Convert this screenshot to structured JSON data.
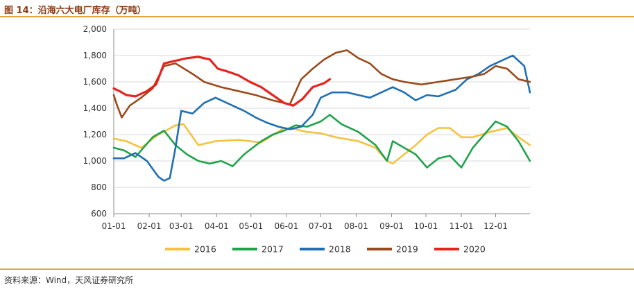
{
  "header": {
    "title": "图 14：沿海六大电厂库存（万吨）"
  },
  "footer": {
    "source": "资料来源：Wind，天风证券研究所"
  },
  "chart_data": {
    "type": "line",
    "title": "图 14：沿海六大电厂库存（万吨）",
    "xlabel": "",
    "ylabel": "",
    "ylim": [
      600,
      2000
    ],
    "yticks": [
      600,
      800,
      1000,
      1200,
      1400,
      1600,
      1800,
      2000
    ],
    "yticklabels": [
      "600",
      "800",
      "1,000",
      "1,200",
      "1,400",
      "1,600",
      "1,800",
      "2,000"
    ],
    "x_unit": "day_of_year",
    "xlim": [
      1,
      365
    ],
    "xticks": [
      1,
      32,
      60,
      91,
      121,
      152,
      182,
      213,
      244,
      274,
      305,
      335
    ],
    "xticklabels": [
      "01-01",
      "02-01",
      "03-01",
      "04-01",
      "05-01",
      "06-01",
      "07-01",
      "08-01",
      "09-01",
      "10-01",
      "11-01",
      "12-01"
    ],
    "grid": "horizontal",
    "legend_position": "bottom",
    "series": [
      {
        "name": "2016",
        "color": "#f5c242",
        "x": [
          1,
          12,
          25,
          40,
          55,
          62,
          75,
          90,
          110,
          130,
          150,
          160,
          170,
          182,
          195,
          215,
          230,
          240,
          245,
          255,
          265,
          275,
          285,
          295,
          305,
          315,
          330,
          345,
          355,
          365
        ],
        "y": [
          1170,
          1150,
          1100,
          1200,
          1270,
          1280,
          1120,
          1150,
          1160,
          1140,
          1250,
          1240,
          1220,
          1210,
          1180,
          1150,
          1100,
          1000,
          980,
          1050,
          1120,
          1200,
          1250,
          1250,
          1180,
          1180,
          1220,
          1250,
          1180,
          1120
        ]
      },
      {
        "name": "2017",
        "color": "#1fa34a",
        "x": [
          1,
          10,
          20,
          35,
          45,
          55,
          65,
          75,
          85,
          95,
          105,
          115,
          130,
          140,
          150,
          160,
          170,
          182,
          190,
          200,
          215,
          230,
          240,
          245,
          255,
          265,
          275,
          285,
          295,
          305,
          315,
          325,
          335,
          345,
          355,
          365
        ],
        "y": [
          1100,
          1080,
          1030,
          1180,
          1230,
          1120,
          1050,
          1000,
          980,
          1000,
          960,
          1050,
          1150,
          1200,
          1230,
          1270,
          1260,
          1300,
          1350,
          1280,
          1220,
          1120,
          1000,
          1150,
          1100,
          1050,
          950,
          1020,
          1040,
          950,
          1100,
          1200,
          1300,
          1260,
          1150,
          1000
        ]
      },
      {
        "name": "2018",
        "color": "#1f6fb2",
        "x": [
          1,
          10,
          20,
          30,
          40,
          45,
          50,
          55,
          60,
          70,
          80,
          90,
          105,
          115,
          125,
          135,
          145,
          155,
          165,
          175,
          182,
          192,
          205,
          215,
          225,
          235,
          245,
          255,
          265,
          275,
          285,
          300,
          310,
          320,
          330,
          340,
          350,
          360,
          365
        ],
        "y": [
          1020,
          1020,
          1060,
          1000,
          880,
          850,
          870,
          1100,
          1380,
          1360,
          1440,
          1480,
          1420,
          1380,
          1330,
          1290,
          1260,
          1240,
          1260,
          1350,
          1480,
          1520,
          1520,
          1500,
          1480,
          1520,
          1560,
          1520,
          1460,
          1500,
          1490,
          1540,
          1620,
          1660,
          1720,
          1760,
          1800,
          1720,
          1520
        ]
      },
      {
        "name": "2019",
        "color": "#9b4a1b",
        "x": [
          1,
          4,
          8,
          15,
          25,
          35,
          45,
          55,
          70,
          80,
          95,
          110,
          125,
          140,
          155,
          165,
          175,
          185,
          195,
          205,
          215,
          225,
          235,
          245,
          255,
          270,
          285,
          300,
          315,
          325,
          335,
          345,
          355,
          365
        ],
        "y": [
          1500,
          1420,
          1330,
          1420,
          1480,
          1550,
          1720,
          1740,
          1660,
          1600,
          1560,
          1530,
          1500,
          1460,
          1430,
          1620,
          1700,
          1770,
          1820,
          1840,
          1780,
          1740,
          1660,
          1620,
          1600,
          1580,
          1600,
          1620,
          1640,
          1660,
          1720,
          1700,
          1620,
          1600
        ]
      },
      {
        "name": "2020",
        "color": "#e8231f",
        "x": [
          1,
          6,
          12,
          20,
          30,
          38,
          45,
          55,
          65,
          75,
          85,
          92,
          100,
          110,
          120,
          130,
          140,
          150,
          158,
          166,
          175,
          185,
          190
        ],
        "y": [
          1550,
          1530,
          1500,
          1490,
          1530,
          1580,
          1740,
          1760,
          1780,
          1790,
          1770,
          1700,
          1680,
          1650,
          1600,
          1560,
          1500,
          1440,
          1420,
          1470,
          1560,
          1590,
          1620
        ]
      }
    ]
  }
}
